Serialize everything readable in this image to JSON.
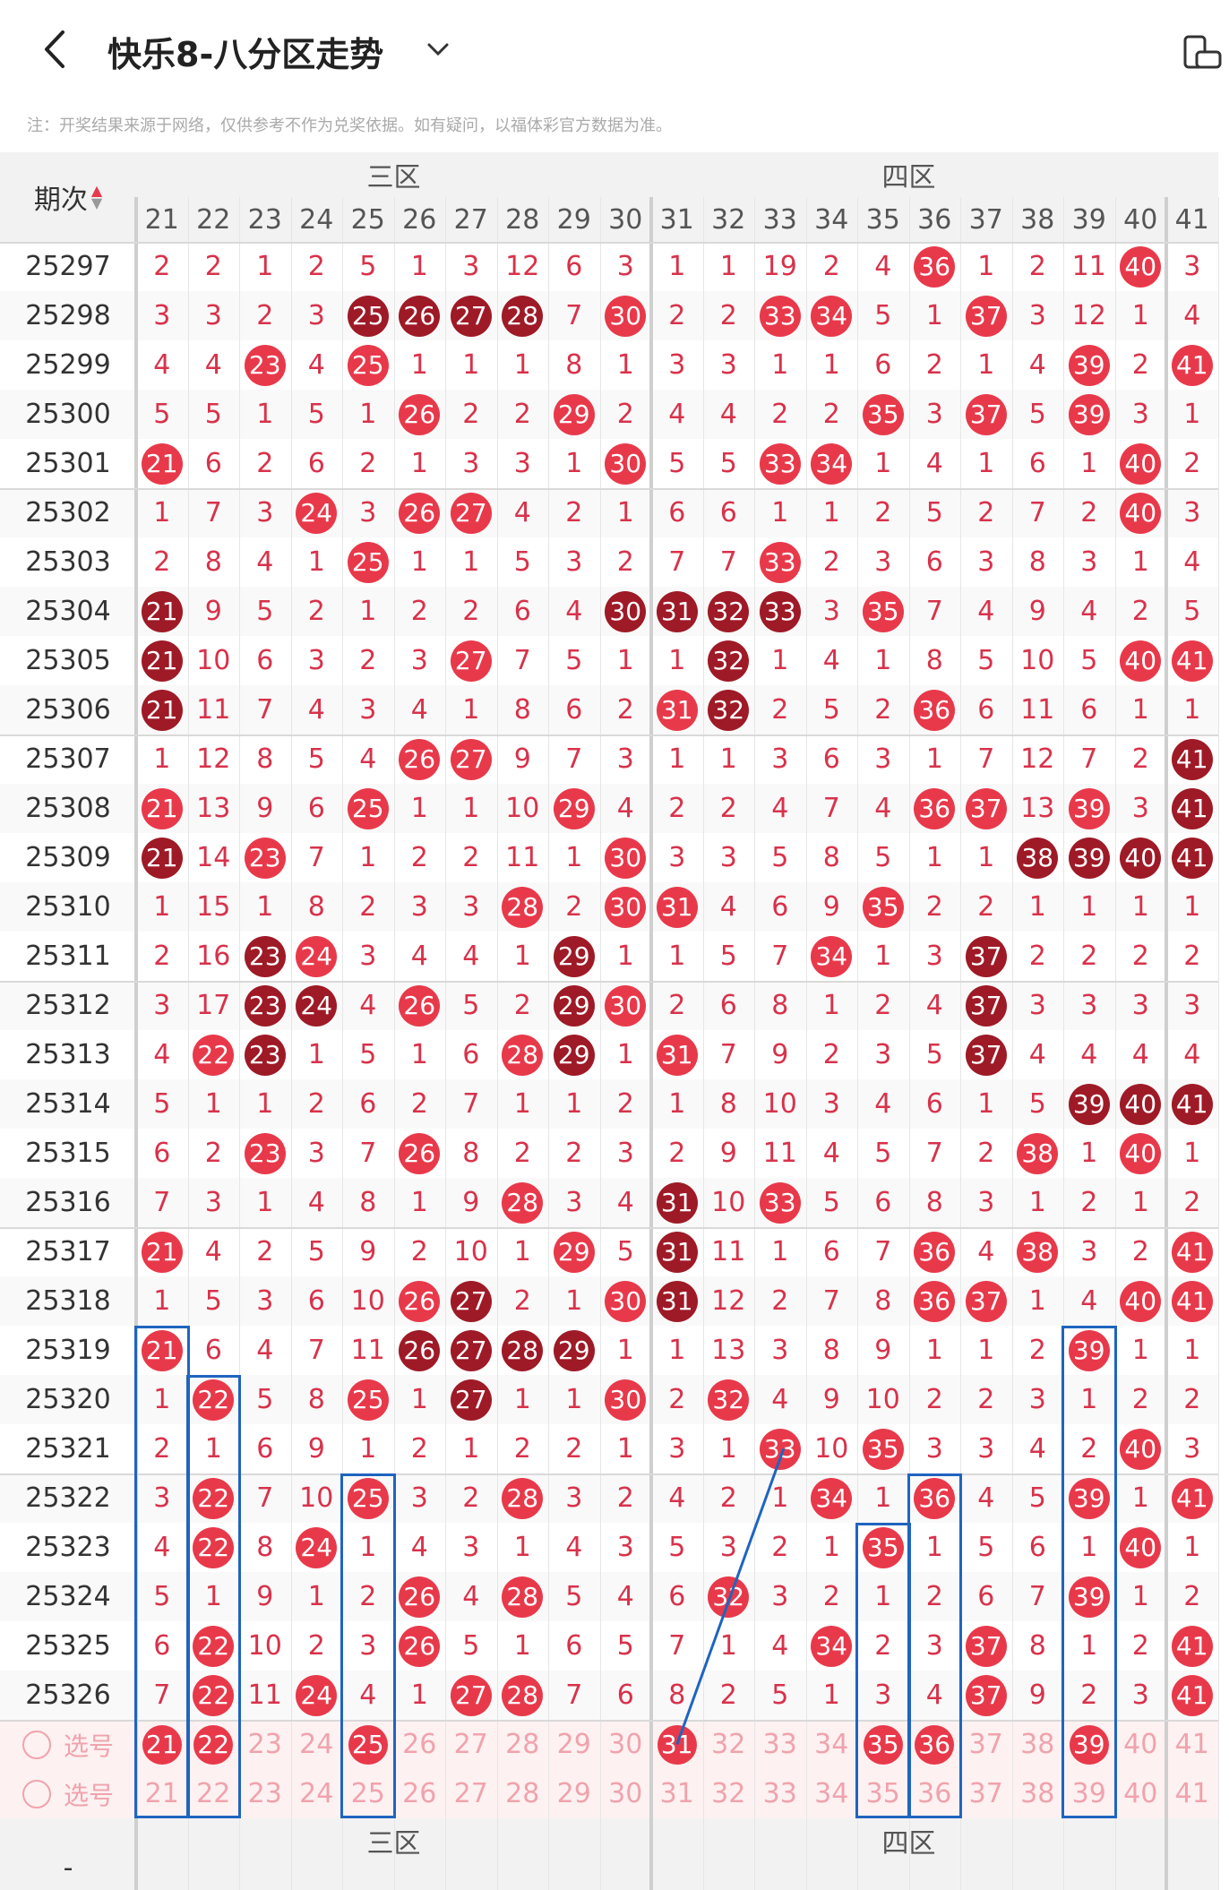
{
  "header": {
    "title": "快乐8-八分区走势",
    "note": "注：开奖结果来源于网络，仅供参考不作为兑奖依据。如有疑问，以福体彩官方数据为准。"
  },
  "grid": {
    "period_header": "期次",
    "zone_3": "三区",
    "zone_4": "四区",
    "columns": [
      "21",
      "22",
      "23",
      "24",
      "25",
      "26",
      "27",
      "28",
      "29",
      "30",
      "31",
      "32",
      "33",
      "34",
      "35",
      "36",
      "37",
      "38",
      "39",
      "40",
      "41"
    ],
    "select_label": "选号",
    "bottom_left": "-",
    "rows": [
      {
        "p": "25297",
        "v": [
          "2",
          "2",
          "1",
          "2",
          "5",
          "1",
          "3",
          "12",
          "6",
          "3",
          "1",
          "1",
          "19",
          "2",
          "4",
          "H36",
          "1",
          "2",
          "11",
          "H40",
          "3"
        ]
      },
      {
        "p": "25298",
        "v": [
          "3",
          "3",
          "2",
          "3",
          "D25",
          "D26",
          "D27",
          "D28",
          "7",
          "H30",
          "2",
          "2",
          "H33",
          "H34",
          "5",
          "1",
          "H37",
          "3",
          "12",
          "1",
          "4"
        ]
      },
      {
        "p": "25299",
        "v": [
          "4",
          "4",
          "H23",
          "4",
          "H25",
          "1",
          "1",
          "1",
          "8",
          "1",
          "3",
          "3",
          "1",
          "1",
          "6",
          "2",
          "1",
          "4",
          "H39",
          "2",
          "H41"
        ]
      },
      {
        "p": "25300",
        "v": [
          "5",
          "5",
          "1",
          "5",
          "1",
          "H26",
          "2",
          "2",
          "H29",
          "2",
          "4",
          "4",
          "2",
          "2",
          "H35",
          "3",
          "H37",
          "5",
          "H39",
          "3",
          "1"
        ]
      },
      {
        "p": "25301",
        "v": [
          "H21",
          "6",
          "2",
          "6",
          "2",
          "1",
          "3",
          "3",
          "1",
          "H30",
          "5",
          "5",
          "H33",
          "H34",
          "1",
          "4",
          "1",
          "6",
          "1",
          "H40",
          "2"
        ]
      },
      {
        "p": "25302",
        "v": [
          "1",
          "7",
          "3",
          "H24",
          "3",
          "H26",
          "H27",
          "4",
          "2",
          "1",
          "6",
          "6",
          "1",
          "1",
          "2",
          "5",
          "2",
          "7",
          "2",
          "H40",
          "3"
        ]
      },
      {
        "p": "25303",
        "v": [
          "2",
          "8",
          "4",
          "1",
          "H25",
          "1",
          "1",
          "5",
          "3",
          "2",
          "7",
          "7",
          "H33",
          "2",
          "3",
          "6",
          "3",
          "8",
          "3",
          "1",
          "4"
        ]
      },
      {
        "p": "25304",
        "v": [
          "D21",
          "9",
          "5",
          "2",
          "1",
          "2",
          "2",
          "6",
          "4",
          "D30",
          "D31",
          "D32",
          "D33",
          "3",
          "H35",
          "7",
          "4",
          "9",
          "4",
          "2",
          "5"
        ]
      },
      {
        "p": "25305",
        "v": [
          "D21",
          "10",
          "6",
          "3",
          "2",
          "3",
          "H27",
          "7",
          "5",
          "1",
          "1",
          "D32",
          "1",
          "4",
          "1",
          "8",
          "5",
          "10",
          "5",
          "H40",
          "H41"
        ]
      },
      {
        "p": "25306",
        "v": [
          "D21",
          "11",
          "7",
          "4",
          "3",
          "4",
          "1",
          "8",
          "6",
          "2",
          "H31",
          "D32",
          "2",
          "5",
          "2",
          "H36",
          "6",
          "11",
          "6",
          "1",
          "1"
        ]
      },
      {
        "p": "25307",
        "v": [
          "1",
          "12",
          "8",
          "5",
          "4",
          "H26",
          "H27",
          "9",
          "7",
          "3",
          "1",
          "1",
          "3",
          "6",
          "3",
          "1",
          "7",
          "12",
          "7",
          "2",
          "D41"
        ]
      },
      {
        "p": "25308",
        "v": [
          "H21",
          "13",
          "9",
          "6",
          "H25",
          "1",
          "1",
          "10",
          "H29",
          "4",
          "2",
          "2",
          "4",
          "7",
          "4",
          "H36",
          "H37",
          "13",
          "H39",
          "3",
          "D41"
        ]
      },
      {
        "p": "25309",
        "v": [
          "D21",
          "14",
          "H23",
          "7",
          "1",
          "2",
          "2",
          "11",
          "1",
          "H30",
          "3",
          "3",
          "5",
          "8",
          "5",
          "1",
          "1",
          "D38",
          "D39",
          "D40",
          "D41"
        ]
      },
      {
        "p": "25310",
        "v": [
          "1",
          "15",
          "1",
          "8",
          "2",
          "3",
          "3",
          "H28",
          "2",
          "H30",
          "H31",
          "4",
          "6",
          "9",
          "H35",
          "2",
          "2",
          "1",
          "1",
          "1",
          "1"
        ]
      },
      {
        "p": "25311",
        "v": [
          "2",
          "16",
          "D23",
          "H24",
          "3",
          "4",
          "4",
          "1",
          "D29",
          "1",
          "1",
          "5",
          "7",
          "H34",
          "1",
          "3",
          "D37",
          "2",
          "2",
          "2",
          "2"
        ]
      },
      {
        "p": "25312",
        "v": [
          "3",
          "17",
          "D23",
          "D24",
          "4",
          "H26",
          "5",
          "2",
          "D29",
          "H30",
          "2",
          "6",
          "8",
          "1",
          "2",
          "4",
          "D37",
          "3",
          "3",
          "3",
          "3"
        ]
      },
      {
        "p": "25313",
        "v": [
          "4",
          "H22",
          "D23",
          "1",
          "5",
          "1",
          "6",
          "H28",
          "D29",
          "1",
          "H31",
          "7",
          "9",
          "2",
          "3",
          "5",
          "D37",
          "4",
          "4",
          "4",
          "4"
        ]
      },
      {
        "p": "25314",
        "v": [
          "5",
          "1",
          "1",
          "2",
          "6",
          "2",
          "7",
          "1",
          "1",
          "2",
          "1",
          "8",
          "10",
          "3",
          "4",
          "6",
          "1",
          "5",
          "D39",
          "D40",
          "D41"
        ]
      },
      {
        "p": "25315",
        "v": [
          "6",
          "2",
          "H23",
          "3",
          "7",
          "H26",
          "8",
          "2",
          "2",
          "3",
          "2",
          "9",
          "11",
          "4",
          "5",
          "7",
          "2",
          "H38",
          "1",
          "H40",
          "1"
        ]
      },
      {
        "p": "25316",
        "v": [
          "7",
          "3",
          "1",
          "4",
          "8",
          "1",
          "9",
          "H28",
          "3",
          "4",
          "D31",
          "10",
          "H33",
          "5",
          "6",
          "8",
          "3",
          "1",
          "2",
          "1",
          "2"
        ]
      },
      {
        "p": "25317",
        "v": [
          "H21",
          "4",
          "2",
          "5",
          "9",
          "2",
          "10",
          "1",
          "H29",
          "5",
          "D31",
          "11",
          "1",
          "6",
          "7",
          "H36",
          "4",
          "H38",
          "3",
          "2",
          "H41"
        ]
      },
      {
        "p": "25318",
        "v": [
          "1",
          "5",
          "3",
          "6",
          "10",
          "H26",
          "D27",
          "2",
          "1",
          "H30",
          "D31",
          "12",
          "2",
          "7",
          "8",
          "H36",
          "H37",
          "1",
          "4",
          "H40",
          "H41"
        ]
      },
      {
        "p": "25319",
        "v": [
          "H21",
          "6",
          "4",
          "7",
          "11",
          "D26",
          "D27",
          "D28",
          "D29",
          "1",
          "1",
          "13",
          "3",
          "8",
          "9",
          "1",
          "1",
          "2",
          "H39",
          "1",
          "1"
        ]
      },
      {
        "p": "25320",
        "v": [
          "1",
          "H22",
          "5",
          "8",
          "H25",
          "1",
          "D27",
          "1",
          "1",
          "H30",
          "2",
          "H32",
          "4",
          "9",
          "10",
          "2",
          "2",
          "3",
          "1",
          "2",
          "2"
        ]
      },
      {
        "p": "25321",
        "v": [
          "2",
          "1",
          "6",
          "9",
          "1",
          "2",
          "1",
          "2",
          "2",
          "1",
          "3",
          "1",
          "H33",
          "10",
          "H35",
          "3",
          "3",
          "4",
          "2",
          "H40",
          "3"
        ]
      },
      {
        "p": "25322",
        "v": [
          "3",
          "H22",
          "7",
          "10",
          "H25",
          "3",
          "2",
          "H28",
          "3",
          "2",
          "4",
          "2",
          "1",
          "H34",
          "1",
          "H36",
          "4",
          "5",
          "H39",
          "1",
          "H41"
        ]
      },
      {
        "p": "25323",
        "v": [
          "4",
          "H22",
          "8",
          "H24",
          "1",
          "4",
          "3",
          "1",
          "4",
          "3",
          "5",
          "3",
          "2",
          "1",
          "H35",
          "1",
          "5",
          "6",
          "1",
          "H40",
          "1"
        ]
      },
      {
        "p": "25324",
        "v": [
          "5",
          "1",
          "9",
          "1",
          "2",
          "H26",
          "4",
          "H28",
          "5",
          "4",
          "6",
          "H32",
          "3",
          "2",
          "1",
          "2",
          "6",
          "7",
          "H39",
          "1",
          "2"
        ]
      },
      {
        "p": "25325",
        "v": [
          "6",
          "H22",
          "10",
          "2",
          "3",
          "H26",
          "5",
          "1",
          "6",
          "5",
          "7",
          "1",
          "4",
          "H34",
          "2",
          "3",
          "H37",
          "8",
          "1",
          "2",
          "H41"
        ]
      },
      {
        "p": "25326",
        "v": [
          "7",
          "H22",
          "11",
          "H24",
          "4",
          "1",
          "H27",
          "H28",
          "7",
          "6",
          "8",
          "2",
          "5",
          "1",
          "3",
          "4",
          "H37",
          "9",
          "2",
          "3",
          "H41"
        ]
      }
    ],
    "select_row_1": [
      "H21",
      "H22",
      "23",
      "24",
      "H25",
      "26",
      "27",
      "28",
      "29",
      "30",
      "H31",
      "32",
      "33",
      "34",
      "H35",
      "H36",
      "37",
      "38",
      "H39",
      "40",
      "41"
    ],
    "select_row_2": [
      "21",
      "22",
      "23",
      "24",
      "25",
      "26",
      "27",
      "28",
      "29",
      "30",
      "31",
      "32",
      "33",
      "34",
      "35",
      "36",
      "37",
      "38",
      "39",
      "40",
      "41"
    ]
  },
  "colors": {
    "red_ball": "#e8394a",
    "dark_ball": "#9e1a26",
    "number_text": "#d8324a",
    "annotation_blue": "#1f64c0"
  }
}
